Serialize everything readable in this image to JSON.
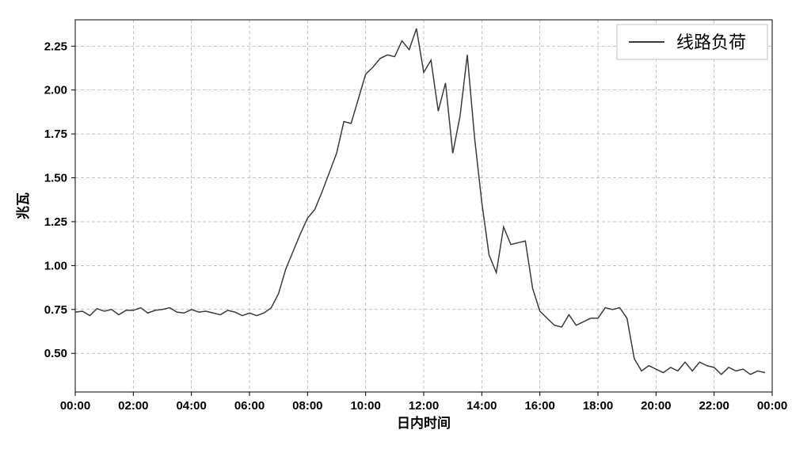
{
  "chart": {
    "type": "line",
    "background_color": "#ffffff",
    "plot_border_color": "#000000",
    "grid_color": "#b0b0b0",
    "line_color": "#3b3b3b",
    "line_width": 1.5,
    "xlabel": "日内时间",
    "ylabel": "兆瓦",
    "label_fontsize": 17,
    "tick_fontsize": 15,
    "legend_fontsize": 22,
    "legend_label": "线路负荷",
    "legend_position": "top-right",
    "xlim": [
      0,
      24
    ],
    "ylim": [
      0.28,
      2.4
    ],
    "xtick_step": 2,
    "xtick_labels": [
      "00:00",
      "02:00",
      "04:00",
      "06:00",
      "08:00",
      "10:00",
      "12:00",
      "14:00",
      "16:00",
      "18:00",
      "20:00",
      "22:00",
      "00:00"
    ],
    "xtick_values": [
      0,
      2,
      4,
      6,
      8,
      10,
      12,
      14,
      16,
      18,
      20,
      22,
      24
    ],
    "ytick_values": [
      0.5,
      0.75,
      1.0,
      1.25,
      1.5,
      1.75,
      2.0,
      2.25
    ],
    "ytick_labels": [
      "0.50",
      "0.75",
      "1.00",
      "1.25",
      "1.50",
      "1.75",
      "2.00",
      "2.25"
    ],
    "series": {
      "x": [
        0.0,
        0.25,
        0.5,
        0.75,
        1.0,
        1.25,
        1.5,
        1.75,
        2.0,
        2.25,
        2.5,
        2.75,
        3.0,
        3.25,
        3.5,
        3.75,
        4.0,
        4.25,
        4.5,
        4.75,
        5.0,
        5.25,
        5.5,
        5.75,
        6.0,
        6.25,
        6.5,
        6.75,
        7.0,
        7.25,
        7.5,
        7.75,
        8.0,
        8.25,
        8.5,
        8.75,
        9.0,
        9.25,
        9.5,
        9.75,
        10.0,
        10.25,
        10.5,
        10.75,
        11.0,
        11.25,
        11.5,
        11.75,
        12.0,
        12.25,
        12.5,
        12.75,
        13.0,
        13.25,
        13.5,
        13.75,
        14.0,
        14.25,
        14.5,
        14.75,
        15.0,
        15.25,
        15.5,
        15.75,
        16.0,
        16.25,
        16.5,
        16.75,
        17.0,
        17.25,
        17.5,
        17.75,
        18.0,
        18.25,
        18.5,
        18.75,
        19.0,
        19.25,
        19.5,
        19.75,
        20.0,
        20.25,
        20.5,
        20.75,
        21.0,
        21.25,
        21.5,
        21.75,
        22.0,
        22.25,
        22.5,
        22.75,
        23.0,
        23.25,
        23.5,
        23.75
      ],
      "y": [
        0.735,
        0.74,
        0.715,
        0.755,
        0.74,
        0.75,
        0.72,
        0.745,
        0.745,
        0.76,
        0.73,
        0.745,
        0.75,
        0.76,
        0.735,
        0.73,
        0.75,
        0.735,
        0.74,
        0.73,
        0.72,
        0.745,
        0.735,
        0.715,
        0.73,
        0.715,
        0.73,
        0.76,
        0.84,
        0.98,
        1.08,
        1.18,
        1.27,
        1.32,
        1.42,
        1.53,
        1.64,
        1.82,
        1.81,
        1.95,
        2.09,
        2.13,
        2.18,
        2.2,
        2.19,
        2.28,
        2.23,
        2.35,
        2.1,
        2.17,
        1.88,
        2.04,
        1.64,
        1.85,
        2.2,
        1.73,
        1.36,
        1.06,
        0.96,
        1.22,
        1.12,
        1.13,
        1.14,
        0.87,
        0.74,
        0.7,
        0.66,
        0.65,
        0.72,
        0.66,
        0.68,
        0.7,
        0.7,
        0.76,
        0.75,
        0.76,
        0.7,
        0.47,
        0.4,
        0.43,
        0.41,
        0.39,
        0.42,
        0.4,
        0.45,
        0.4,
        0.45,
        0.43,
        0.42,
        0.38,
        0.42,
        0.4,
        0.41,
        0.38,
        0.4,
        0.39
      ]
    }
  }
}
